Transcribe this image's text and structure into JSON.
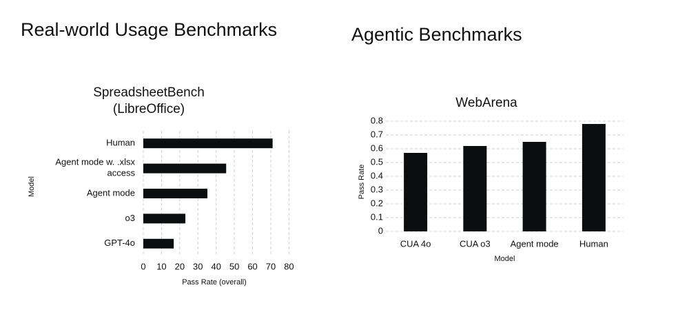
{
  "chart_data": [
    {
      "type": "hbar",
      "heading": "Real-world Usage Benchmarks",
      "title": "SpreadsheetBench",
      "subtitle": "(LibreOffice)",
      "categories": [
        "Human",
        "Agent mode w. .xlsx access",
        "Agent mode",
        "o3",
        "GPT-4o"
      ],
      "values": [
        71,
        45.5,
        35.2,
        23.1,
        16.7
      ],
      "color": "#0b0d0e",
      "xlim": [
        0,
        84
      ],
      "xticks": [
        0,
        10,
        20,
        30,
        40,
        50,
        60,
        70,
        80
      ],
      "xlabel": "Pass Rate (overall)",
      "ylabel": "Model",
      "grid": true
    },
    {
      "type": "bar",
      "heading": "Agentic Benchmarks",
      "title": "WebArena",
      "categories": [
        "CUA 4o",
        "CUA o3",
        "Agent mode",
        "Human"
      ],
      "values": [
        0.57,
        0.62,
        0.65,
        0.78
      ],
      "color": "#0b0d0e",
      "ylim": [
        0,
        0.82
      ],
      "yticks": [
        0,
        0.1,
        0.2,
        0.3,
        0.4,
        0.5,
        0.6,
        0.7,
        0.8
      ],
      "xlabel": "Model",
      "ylabel": "Pass Rate",
      "grid": true
    }
  ]
}
